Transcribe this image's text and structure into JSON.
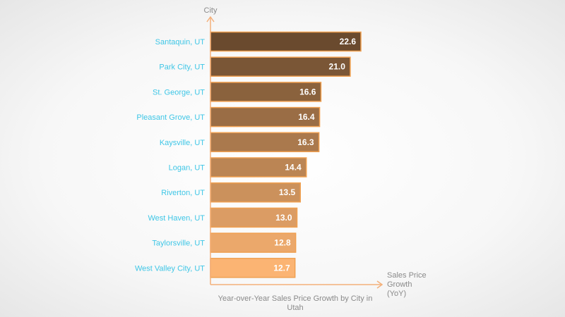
{
  "chart_data": {
    "type": "bar",
    "orientation": "horizontal",
    "title": "Year-over-Year Sales Price Growth by City in Utah",
    "xlabel": "Sales Price Growth (YoY)",
    "ylabel": "City",
    "categories": [
      "Santaquin, UT",
      "Park City, UT",
      "St. George, UT",
      "Pleasant Grove, UT",
      "Kaysville, UT",
      "Logan, UT",
      "Riverton, UT",
      "West Haven, UT",
      "Taylorsville, UT",
      "West Valley City, UT"
    ],
    "values": [
      22.6,
      21.0,
      16.6,
      16.4,
      16.3,
      14.4,
      13.5,
      13.0,
      12.8,
      12.7
    ],
    "value_labels": [
      "22.6",
      "21.0",
      "16.6",
      "16.4",
      "16.3",
      "14.4",
      "13.5",
      "13.0",
      "12.8",
      "12.7"
    ],
    "xlim": [
      0,
      26
    ],
    "grid": false,
    "colors": {
      "bar_start": "#6a4a2e",
      "bar_end": "#fbb473",
      "bar_border": "#f0a050",
      "axis": "#f4b07a",
      "category_label": "#3ec6e6",
      "axis_title": "#8a8a8a"
    }
  }
}
